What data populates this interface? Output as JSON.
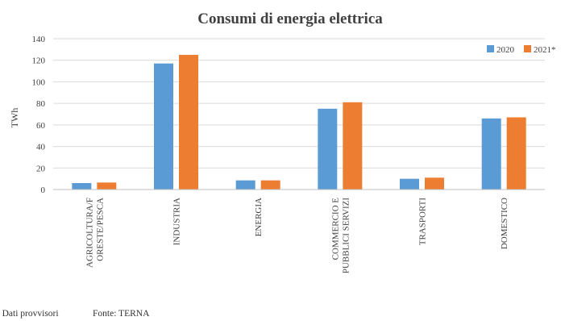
{
  "chart_data": {
    "type": "bar",
    "title": "Consumi di energia elettrica",
    "ylabel": "TWh",
    "xlabel": "",
    "ylim": [
      0,
      140
    ],
    "yticks": [
      0,
      20,
      40,
      60,
      80,
      100,
      120,
      140
    ],
    "grid": true,
    "legend_position": "top-right",
    "categories": [
      [
        "AGRICOLTURA/F",
        "ORESTE/PESCA"
      ],
      [
        "INDUSTRIA"
      ],
      [
        "ENERGIA"
      ],
      [
        "COMMERCIO E",
        "PUBBLICI SERVIZI"
      ],
      [
        "TRASPORTI"
      ],
      [
        "DOMESTICO"
      ]
    ],
    "series": [
      {
        "name": "2020",
        "color": "#5b9bd5",
        "values": [
          6,
          117,
          8.5,
          75,
          10,
          66
        ]
      },
      {
        "name": "2021*",
        "color": "#ed7d31",
        "values": [
          6.5,
          125,
          8.5,
          81,
          11,
          67
        ]
      }
    ]
  },
  "footer": {
    "note": "* Dati provvisori",
    "source": "Fonte: TERNA"
  }
}
